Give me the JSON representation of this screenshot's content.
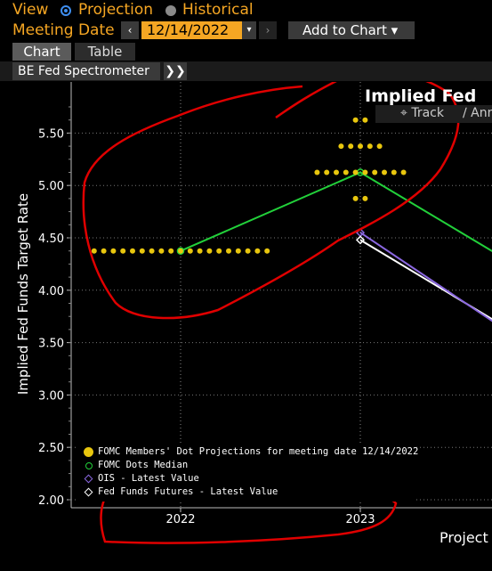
{
  "header": {
    "view_label": "View",
    "view_options": [
      "Projection",
      "Historical"
    ],
    "view_selected": "Projection",
    "meeting_date_label": "Meeting Date",
    "meeting_date_value": "12/14/2022",
    "add_to_chart_label": "Add to Chart ▾"
  },
  "tabs": [
    "Chart",
    "Table"
  ],
  "breadcrumb": {
    "label": "BE Fed Spectrometer",
    "expand": "❯❯"
  },
  "toolbar": {
    "track": "Track",
    "annotate": "Anno"
  },
  "chart_title": "Implied Fed",
  "xlabel_partial": "Project",
  "colors": {
    "dots": "#e8c60e",
    "median": "#22d03a",
    "ois": "#8a67e0",
    "futures": "#ffffff",
    "accent": "#f5a623",
    "annotation": "#e00000"
  },
  "chart_data": {
    "type": "scatter",
    "title": "Implied Fed",
    "ylabel": "Implied Fed Funds Target Rate",
    "xlabel": "Project",
    "ylim": [
      2.0,
      5.75
    ],
    "yticks": [
      "2.00",
      "2.50",
      "3.00",
      "3.50",
      "4.00",
      "4.50",
      "5.00",
      "5.50"
    ],
    "xticks": [
      "2022",
      "2023"
    ],
    "grid": true,
    "legend_position": "bottom-left",
    "series": [
      {
        "name": "FOMC Members' Dot Projections for meeting date 12/14/2022",
        "points": [
          {
            "x": "2022",
            "y": 4.375,
            "count": 19
          },
          {
            "x": "2023",
            "y": 5.625,
            "count": 2
          },
          {
            "x": "2023",
            "y": 5.375,
            "count": 5
          },
          {
            "x": "2023",
            "y": 5.125,
            "count": 10
          },
          {
            "x": "2023",
            "y": 4.875,
            "count": 2
          }
        ]
      },
      {
        "name": "FOMC Dots Median",
        "points": [
          {
            "x": "2022",
            "y": 4.375
          },
          {
            "x": "2023",
            "y": 5.125
          },
          {
            "x": "2024",
            "y": 4.1
          }
        ]
      },
      {
        "name": "OIS - Latest Value",
        "points": [
          {
            "x": "2023",
            "y": 4.55
          },
          {
            "x": "2024",
            "y": 3.4
          }
        ]
      },
      {
        "name": "Fed Funds Futures - Latest Value",
        "points": [
          {
            "x": "2023",
            "y": 4.48
          },
          {
            "x": "2024",
            "y": 3.45
          }
        ]
      }
    ]
  }
}
